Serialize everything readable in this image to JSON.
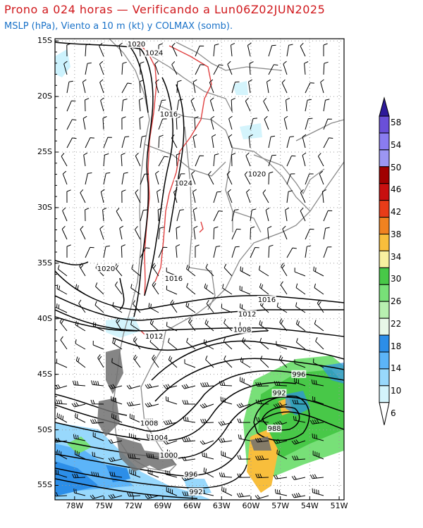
{
  "title": "Prono a 024 horas — Verificando a Lun06Z02JUN2025",
  "subtitle": "MSLP (hPa), Viento a 10 m (kt) y COLMAX (somb).",
  "map": {
    "lat_ticks": [
      "15S",
      "20S",
      "25S",
      "30S",
      "35S",
      "40S",
      "45S",
      "50S",
      "55S"
    ],
    "lon_ticks": [
      "78W",
      "75W",
      "72W",
      "69W",
      "66W",
      "63W",
      "60W",
      "57W",
      "54W",
      "51W"
    ],
    "isobar_labels": [
      {
        "text": "1020",
        "lon": -72.6,
        "lat": -15.5
      },
      {
        "text": "1024",
        "lon": -70.8,
        "lat": -16.3
      },
      {
        "text": "1016",
        "lon": -69.3,
        "lat": -21.8
      },
      {
        "text": "1024",
        "lon": -67.8,
        "lat": -28.0
      },
      {
        "text": "1020",
        "lon": -60.3,
        "lat": -27.2
      },
      {
        "text": "1020",
        "lon": -75.7,
        "lat": -35.7
      },
      {
        "text": "1016",
        "lon": -68.8,
        "lat": -36.6
      },
      {
        "text": "1016",
        "lon": -59.3,
        "lat": -38.5
      },
      {
        "text": "1012",
        "lon": -61.3,
        "lat": -39.8
      },
      {
        "text": "1012",
        "lon": -70.8,
        "lat": -41.8
      },
      {
        "text": "1008",
        "lon": -61.8,
        "lat": -41.2
      },
      {
        "text": "996",
        "lon": -55.8,
        "lat": -45.2
      },
      {
        "text": "992",
        "lon": -57.8,
        "lat": -46.9
      },
      {
        "text": "988",
        "lon": -58.3,
        "lat": -50.1
      },
      {
        "text": "1008",
        "lon": -71.3,
        "lat": -49.6
      },
      {
        "text": "1004",
        "lon": -70.3,
        "lat": -50.9
      },
      {
        "text": "1000",
        "lon": -69.3,
        "lat": -52.5
      },
      {
        "text": "996",
        "lon": -66.8,
        "lat": -54.2
      },
      {
        "text": "992",
        "lon": -66.3,
        "lat": -55.8
      }
    ]
  },
  "colorbar": {
    "labels": [
      "58",
      "54",
      "50",
      "46",
      "42",
      "38",
      "34",
      "30",
      "26",
      "22",
      "18",
      "14",
      "10",
      "6"
    ],
    "colors": [
      "#6a50d8",
      "#8a7cf0",
      "#9c96f2",
      "#a00000",
      "#c81010",
      "#e83c18",
      "#f08220",
      "#f8be3c",
      "#f8f0a0",
      "#48c848",
      "#78e078",
      "#b8f0b0",
      "#e8f8e8",
      "#2c8ee8",
      "#5cb4f8",
      "#98d8fc",
      "#d4f4fc"
    ],
    "top_color": "#2d1a9a",
    "bottom_color": "#ffffff"
  },
  "colors": {
    "title": "#d0181c",
    "subtitle": "#1a72c8",
    "isobar": "#000000",
    "topo_contour": "#e04040",
    "borders": "#888888"
  }
}
